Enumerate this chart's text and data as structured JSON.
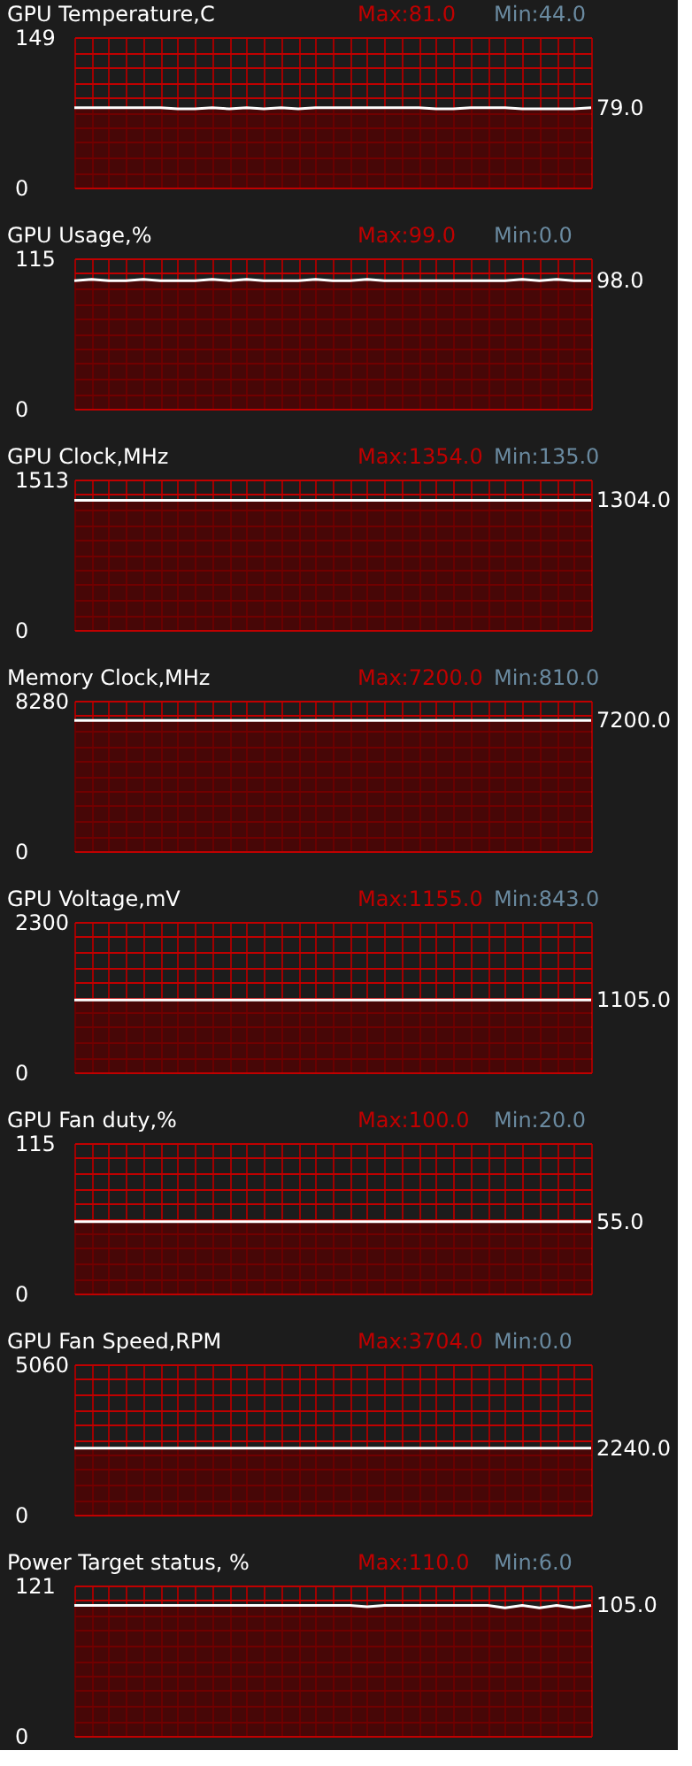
{
  "chart_data": [
    {
      "type": "area",
      "title": "GPU Temperature,C",
      "annotations": [
        "Max:81.0",
        "Min:44.0"
      ],
      "categories": [
        null,
        null,
        null,
        null,
        null,
        null,
        null,
        null,
        null,
        null,
        null,
        null,
        null,
        null,
        null,
        null,
        null,
        null,
        null,
        null,
        null,
        null,
        null,
        null,
        null,
        null,
        null,
        null,
        null,
        null,
        null
      ],
      "ylim": [
        0,
        149
      ],
      "yticks": [
        0,
        {
          "value": 14.9,
          "label": null
        },
        {
          "value": 29.8,
          "label": null
        },
        {
          "value": 44.7,
          "label": null
        },
        {
          "value": 59.6,
          "label": null
        },
        {
          "value": 74.5,
          "label": null
        },
        {
          "value": 89.4,
          "label": null
        },
        {
          "value": 104.3,
          "label": null
        },
        {
          "value": 119.2,
          "label": null
        },
        {
          "value": 134.1,
          "label": null
        },
        149
      ],
      "grid": true,
      "tick_labels": "y",
      "series": [
        {
          "color": "#560000",
          "values": [
            79,
            79,
            79,
            79,
            79,
            79,
            78,
            78,
            79,
            78,
            79,
            78,
            79,
            78,
            79,
            79,
            79,
            79,
            79,
            79,
            79,
            78,
            78,
            79,
            79,
            79,
            78,
            78,
            78,
            78,
            79
          ],
          "value_labels": [
            null,
            null,
            null,
            null,
            null,
            null,
            null,
            null,
            null,
            null,
            null,
            null,
            null,
            null,
            null,
            null,
            null,
            null,
            null,
            null,
            null,
            null,
            null,
            null,
            null,
            null,
            null,
            null,
            null,
            null,
            "79.0"
          ]
        }
      ]
    },
    {
      "type": "area",
      "title": "GPU Usage,%",
      "annotations": [
        "Max:99.0",
        "Min:0.0"
      ],
      "categories": [
        null,
        null,
        null,
        null,
        null,
        null,
        null,
        null,
        null,
        null,
        null,
        null,
        null,
        null,
        null,
        null,
        null,
        null,
        null,
        null,
        null,
        null,
        null,
        null,
        null,
        null,
        null,
        null,
        null,
        null,
        null
      ],
      "ylim": [
        0,
        115
      ],
      "yticks": [
        0,
        {
          "value": 11.5,
          "label": null
        },
        {
          "value": 23,
          "label": null
        },
        {
          "value": 34.5,
          "label": null
        },
        {
          "value": 46,
          "label": null
        },
        {
          "value": 57.5,
          "label": null
        },
        {
          "value": 69,
          "label": null
        },
        {
          "value": 80.5,
          "label": null
        },
        {
          "value": 92,
          "label": null
        },
        {
          "value": 103.5,
          "label": null
        },
        115
      ],
      "grid": true,
      "tick_labels": "y",
      "series": [
        {
          "color": "#560000",
          "values": [
            98,
            99,
            98,
            98,
            99,
            98,
            98,
            98,
            99,
            98,
            99,
            98,
            98,
            98,
            99,
            98,
            98,
            99,
            98,
            98,
            98,
            98,
            98,
            98,
            98,
            98,
            99,
            98,
            99,
            98,
            98
          ],
          "value_labels": [
            null,
            null,
            null,
            null,
            null,
            null,
            null,
            null,
            null,
            null,
            null,
            null,
            null,
            null,
            null,
            null,
            null,
            null,
            null,
            null,
            null,
            null,
            null,
            null,
            null,
            null,
            null,
            null,
            null,
            null,
            "98.0"
          ]
        }
      ]
    },
    {
      "type": "area",
      "title": "GPU Clock,MHz",
      "annotations": [
        "Max:1354.0",
        "Min:135.0"
      ],
      "categories": [
        null,
        null,
        null,
        null,
        null,
        null,
        null,
        null,
        null,
        null,
        null,
        null,
        null,
        null,
        null,
        null,
        null,
        null,
        null,
        null,
        null,
        null,
        null,
        null,
        null,
        null,
        null,
        null,
        null,
        null,
        null
      ],
      "ylim": [
        0,
        1513
      ],
      "yticks": [
        0,
        {
          "value": 151.3,
          "label": null
        },
        {
          "value": 302.6,
          "label": null
        },
        {
          "value": 453.9,
          "label": null
        },
        {
          "value": 605.2,
          "label": null
        },
        {
          "value": 756.5,
          "label": null
        },
        {
          "value": 907.8,
          "label": null
        },
        {
          "value": 1059.1,
          "label": null
        },
        {
          "value": 1210.4,
          "label": null
        },
        {
          "value": 1361.7,
          "label": null
        },
        1513
      ],
      "grid": true,
      "tick_labels": "y",
      "series": [
        {
          "color": "#560000",
          "values": [
            1304,
            1304,
            1304,
            1304,
            1304,
            1304,
            1304,
            1304,
            1304,
            1304,
            1304,
            1304,
            1304,
            1304,
            1304,
            1304,
            1304,
            1304,
            1304,
            1304,
            1304,
            1304,
            1304,
            1304,
            1304,
            1304,
            1304,
            1304,
            1304,
            1304,
            1304
          ],
          "value_labels": [
            null,
            null,
            null,
            null,
            null,
            null,
            null,
            null,
            null,
            null,
            null,
            null,
            null,
            null,
            null,
            null,
            null,
            null,
            null,
            null,
            null,
            null,
            null,
            null,
            null,
            null,
            null,
            null,
            null,
            null,
            "1304.0"
          ]
        }
      ]
    },
    {
      "type": "area",
      "title": "Memory Clock,MHz",
      "annotations": [
        "Max:7200.0",
        "Min:810.0"
      ],
      "categories": [
        null,
        null,
        null,
        null,
        null,
        null,
        null,
        null,
        null,
        null,
        null,
        null,
        null,
        null,
        null,
        null,
        null,
        null,
        null,
        null,
        null,
        null,
        null,
        null,
        null,
        null,
        null,
        null,
        null,
        null,
        null
      ],
      "ylim": [
        0,
        8280
      ],
      "yticks": [
        0,
        {
          "value": 828,
          "label": null
        },
        {
          "value": 1656,
          "label": null
        },
        {
          "value": 2484,
          "label": null
        },
        {
          "value": 3312,
          "label": null
        },
        {
          "value": 4140,
          "label": null
        },
        {
          "value": 4968,
          "label": null
        },
        {
          "value": 5796,
          "label": null
        },
        {
          "value": 6624,
          "label": null
        },
        {
          "value": 7452,
          "label": null
        },
        8280
      ],
      "grid": true,
      "tick_labels": "y",
      "series": [
        {
          "color": "#560000",
          "values": [
            7200,
            7200,
            7200,
            7200,
            7200,
            7200,
            7200,
            7200,
            7200,
            7200,
            7200,
            7200,
            7200,
            7200,
            7200,
            7200,
            7200,
            7200,
            7200,
            7200,
            7200,
            7200,
            7200,
            7200,
            7200,
            7200,
            7200,
            7200,
            7200,
            7200,
            7200
          ],
          "value_labels": [
            null,
            null,
            null,
            null,
            null,
            null,
            null,
            null,
            null,
            null,
            null,
            null,
            null,
            null,
            null,
            null,
            null,
            null,
            null,
            null,
            null,
            null,
            null,
            null,
            null,
            null,
            null,
            null,
            null,
            null,
            "7200.0"
          ]
        }
      ]
    },
    {
      "type": "area",
      "title": "GPU Voltage,mV",
      "annotations": [
        "Max:1155.0",
        "Min:843.0"
      ],
      "categories": [
        null,
        null,
        null,
        null,
        null,
        null,
        null,
        null,
        null,
        null,
        null,
        null,
        null,
        null,
        null,
        null,
        null,
        null,
        null,
        null,
        null,
        null,
        null,
        null,
        null,
        null,
        null,
        null,
        null,
        null,
        null
      ],
      "ylim": [
        0,
        2300
      ],
      "yticks": [
        0,
        {
          "value": 230,
          "label": null
        },
        {
          "value": 460,
          "label": null
        },
        {
          "value": 690,
          "label": null
        },
        {
          "value": 920,
          "label": null
        },
        {
          "value": 1150,
          "label": null
        },
        {
          "value": 1380,
          "label": null
        },
        {
          "value": 1610,
          "label": null
        },
        {
          "value": 1840,
          "label": null
        },
        {
          "value": 2070,
          "label": null
        },
        2300
      ],
      "grid": true,
      "tick_labels": "y",
      "series": [
        {
          "color": "#560000",
          "values": [
            1105,
            1105,
            1105,
            1105,
            1105,
            1105,
            1105,
            1105,
            1105,
            1105,
            1105,
            1105,
            1105,
            1105,
            1105,
            1105,
            1105,
            1105,
            1105,
            1105,
            1105,
            1105,
            1105,
            1105,
            1105,
            1105,
            1105,
            1105,
            1105,
            1105,
            1105
          ],
          "value_labels": [
            null,
            null,
            null,
            null,
            null,
            null,
            null,
            null,
            null,
            null,
            null,
            null,
            null,
            null,
            null,
            null,
            null,
            null,
            null,
            null,
            null,
            null,
            null,
            null,
            null,
            null,
            null,
            null,
            null,
            null,
            "1105.0"
          ]
        }
      ]
    },
    {
      "type": "area",
      "title": "GPU Fan duty,%",
      "annotations": [
        "Max:100.0",
        "Min:20.0"
      ],
      "categories": [
        null,
        null,
        null,
        null,
        null,
        null,
        null,
        null,
        null,
        null,
        null,
        null,
        null,
        null,
        null,
        null,
        null,
        null,
        null,
        null,
        null,
        null,
        null,
        null,
        null,
        null,
        null,
        null,
        null,
        null,
        null
      ],
      "ylim": [
        0,
        115
      ],
      "yticks": [
        0,
        {
          "value": 11.5,
          "label": null
        },
        {
          "value": 23,
          "label": null
        },
        {
          "value": 34.5,
          "label": null
        },
        {
          "value": 46,
          "label": null
        },
        {
          "value": 57.5,
          "label": null
        },
        {
          "value": 69,
          "label": null
        },
        {
          "value": 80.5,
          "label": null
        },
        {
          "value": 92,
          "label": null
        },
        {
          "value": 103.5,
          "label": null
        },
        115
      ],
      "grid": true,
      "tick_labels": "y",
      "series": [
        {
          "color": "#560000",
          "values": [
            55,
            55,
            55,
            55,
            55,
            55,
            55,
            55,
            55,
            55,
            55,
            55,
            55,
            55,
            55,
            55,
            55,
            55,
            55,
            55,
            55,
            55,
            55,
            55,
            55,
            55,
            55,
            55,
            55,
            55,
            55
          ],
          "value_labels": [
            null,
            null,
            null,
            null,
            null,
            null,
            null,
            null,
            null,
            null,
            null,
            null,
            null,
            null,
            null,
            null,
            null,
            null,
            null,
            null,
            null,
            null,
            null,
            null,
            null,
            null,
            null,
            null,
            null,
            null,
            "55.0"
          ]
        }
      ]
    },
    {
      "type": "area",
      "title": "GPU Fan Speed,RPM",
      "annotations": [
        "Max:3704.0",
        "Min:0.0"
      ],
      "categories": [
        null,
        null,
        null,
        null,
        null,
        null,
        null,
        null,
        null,
        null,
        null,
        null,
        null,
        null,
        null,
        null,
        null,
        null,
        null,
        null,
        null,
        null,
        null,
        null,
        null,
        null,
        null,
        null,
        null,
        null,
        null
      ],
      "ylim": [
        0,
        5060
      ],
      "yticks": [
        0,
        {
          "value": 506,
          "label": null
        },
        {
          "value": 1012,
          "label": null
        },
        {
          "value": 1518,
          "label": null
        },
        {
          "value": 2024,
          "label": null
        },
        {
          "value": 2530,
          "label": null
        },
        {
          "value": 3036,
          "label": null
        },
        {
          "value": 3542,
          "label": null
        },
        {
          "value": 4048,
          "label": null
        },
        {
          "value": 4554,
          "label": null
        },
        5060
      ],
      "grid": true,
      "tick_labels": "y",
      "series": [
        {
          "color": "#560000",
          "values": [
            2240,
            2240,
            2240,
            2240,
            2240,
            2240,
            2240,
            2240,
            2240,
            2240,
            2240,
            2240,
            2240,
            2240,
            2240,
            2240,
            2240,
            2240,
            2240,
            2240,
            2240,
            2240,
            2240,
            2240,
            2240,
            2240,
            2240,
            2240,
            2240,
            2240,
            2240
          ],
          "value_labels": [
            null,
            null,
            null,
            null,
            null,
            null,
            null,
            null,
            null,
            null,
            null,
            null,
            null,
            null,
            null,
            null,
            null,
            null,
            null,
            null,
            null,
            null,
            null,
            null,
            null,
            null,
            null,
            null,
            null,
            null,
            "2240.0"
          ]
        }
      ]
    },
    {
      "type": "area",
      "title": "Power Target status, %",
      "annotations": [
        "Max:110.0",
        "Min:6.0"
      ],
      "categories": [
        null,
        null,
        null,
        null,
        null,
        null,
        null,
        null,
        null,
        null,
        null,
        null,
        null,
        null,
        null,
        null,
        null,
        null,
        null,
        null,
        null,
        null,
        null,
        null,
        null,
        null,
        null,
        null,
        null,
        null,
        null
      ],
      "ylim": [
        0,
        121
      ],
      "yticks": [
        0,
        {
          "value": 12.1,
          "label": null
        },
        {
          "value": 24.2,
          "label": null
        },
        {
          "value": 36.3,
          "label": null
        },
        {
          "value": 48.4,
          "label": null
        },
        {
          "value": 60.5,
          "label": null
        },
        {
          "value": 72.6,
          "label": null
        },
        {
          "value": 84.7,
          "label": null
        },
        {
          "value": 96.8,
          "label": null
        },
        {
          "value": 108.9,
          "label": null
        },
        121
      ],
      "grid": true,
      "tick_labels": "y",
      "series": [
        {
          "color": "#560000",
          "values": [
            105,
            105,
            105,
            105,
            105,
            105,
            105,
            105,
            105,
            105,
            105,
            105,
            105,
            105,
            105,
            105,
            105,
            104,
            105,
            105,
            105,
            105,
            105,
            105,
            105,
            103,
            105,
            103,
            105,
            103,
            105
          ],
          "value_labels": [
            null,
            null,
            null,
            null,
            null,
            null,
            null,
            null,
            null,
            null,
            null,
            null,
            null,
            null,
            null,
            null,
            null,
            null,
            null,
            null,
            null,
            null,
            null,
            null,
            null,
            null,
            null,
            null,
            null,
            null,
            "105.0"
          ]
        }
      ]
    }
  ]
}
